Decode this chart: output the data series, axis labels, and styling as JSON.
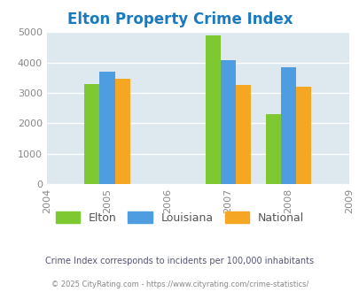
{
  "title": "Elton Property Crime Index",
  "title_color": "#1a7abf",
  "years": [
    2004,
    2005,
    2006,
    2007,
    2008,
    2009
  ],
  "data_years": [
    2005,
    2007,
    2008
  ],
  "elton": [
    3280,
    4900,
    2300
  ],
  "louisiana": [
    3700,
    4080,
    3830
  ],
  "national": [
    3450,
    3250,
    3200
  ],
  "elton_color": "#7ec832",
  "louisiana_color": "#4d9de0",
  "national_color": "#f5a623",
  "ylim": [
    0,
    5000
  ],
  "yticks": [
    0,
    1000,
    2000,
    3000,
    4000,
    5000
  ],
  "bar_width": 0.25,
  "plot_bg_color": "#dde8ef",
  "fig_bg_color": "#ffffff",
  "legend_labels": [
    "Elton",
    "Louisiana",
    "National"
  ],
  "footnote1": "Crime Index corresponds to incidents per 100,000 inhabitants",
  "footnote2": "© 2025 CityRating.com - https://www.cityrating.com/crime-statistics/",
  "footnote1_color": "#555577",
  "footnote2_color": "#888888",
  "grid_color": "#ffffff",
  "tick_label_color": "#888888"
}
